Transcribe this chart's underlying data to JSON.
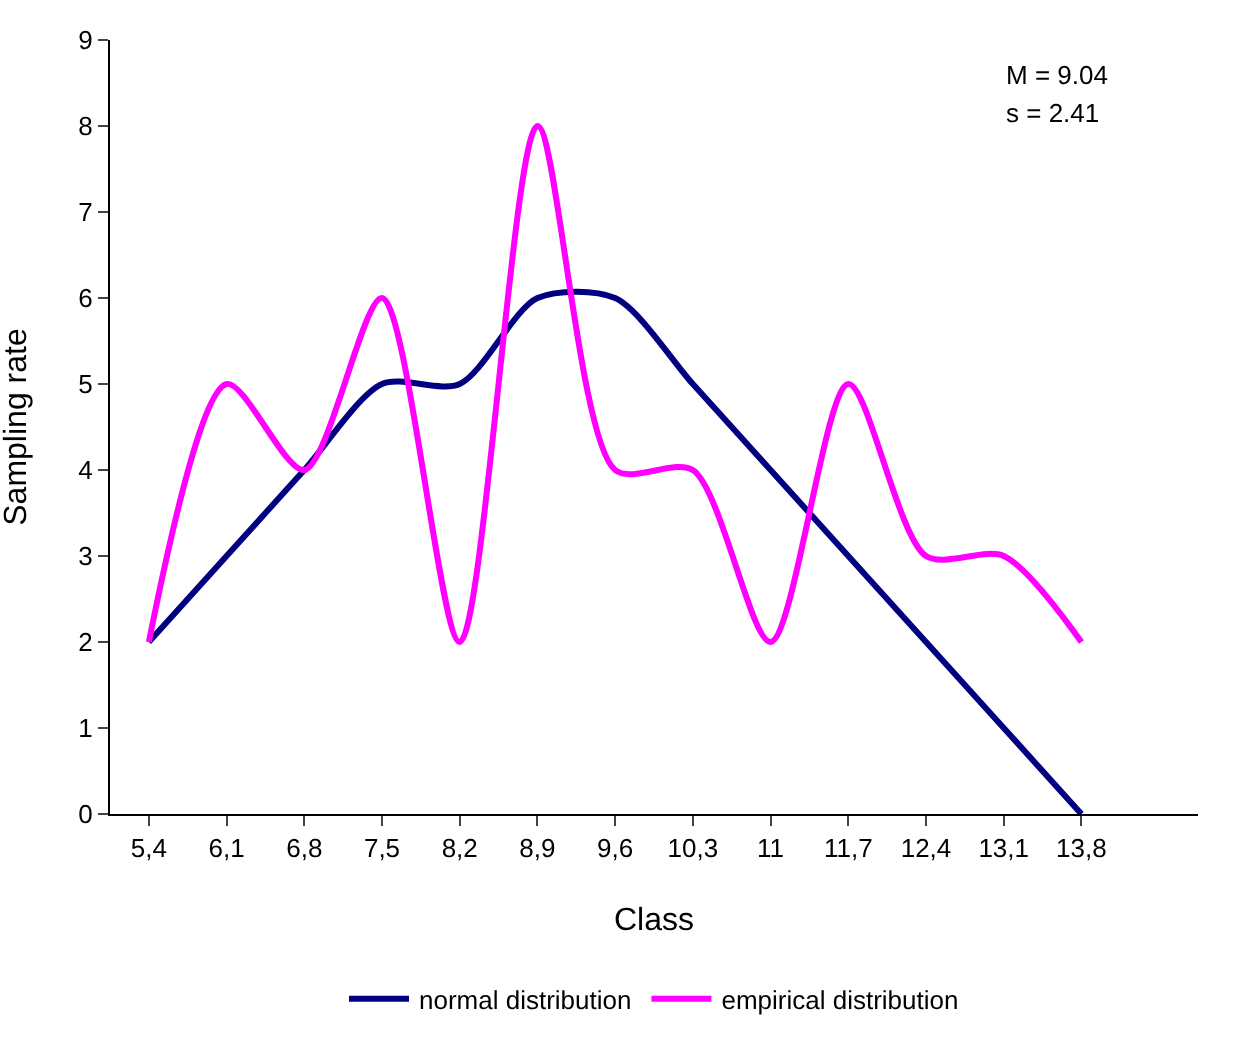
{
  "chart_data": {
    "type": "line",
    "xlabel": "Class",
    "ylabel": "Sampling rate",
    "categories": [
      "5,4",
      "6,1",
      "6,8",
      "7,5",
      "8,2",
      "8,9",
      "9,6",
      "10,3",
      "11",
      "11,7",
      "12,4",
      "13,1",
      "13,8"
    ],
    "series": [
      {
        "name": "normal distribution",
        "color": "#000080",
        "values": [
          2,
          3,
          4,
          5,
          5,
          6,
          6,
          5,
          4,
          3,
          2,
          1,
          0
        ]
      },
      {
        "name": "empirical distribution",
        "color": "#ff00ff",
        "values": [
          2,
          5,
          4,
          6,
          2,
          8,
          4,
          4,
          2,
          5,
          3,
          3,
          2
        ]
      }
    ],
    "ylim": [
      0,
      9
    ],
    "yticks": [
      0,
      1,
      2,
      3,
      4,
      5,
      6,
      7,
      8,
      9
    ],
    "grid": false,
    "legend": "bottom",
    "marker": "none",
    "line_style": "solid",
    "annotations": [
      "M = 9.04",
      "s = 2.41"
    ]
  }
}
